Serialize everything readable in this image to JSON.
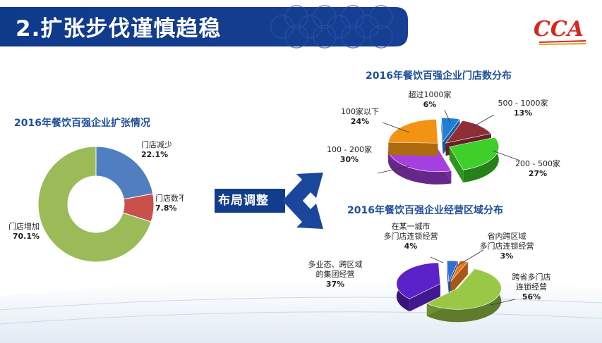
{
  "banner": {
    "title": "2.扩张步伐谨慎趋稳"
  },
  "logo": {
    "text": "CCA"
  },
  "arrow_label": "布局调整",
  "colors": {
    "banner": "#123c8c",
    "title_text": "#1f4e9a"
  },
  "chart_data": [
    {
      "type": "pie",
      "style": "donut",
      "title": "2016年餐饮百强企业扩张情况",
      "slices": [
        {
          "label": "门店减少",
          "value": 22.1,
          "value_label": "22.1%",
          "color": "#4f7fc0"
        },
        {
          "label": "门店数不变",
          "value": 7.8,
          "value_label": "7.8%",
          "color": "#c9504b"
        },
        {
          "label": "门店增加",
          "value": 70.1,
          "value_label": "70.1%",
          "color": "#9bbb59"
        }
      ]
    },
    {
      "type": "pie",
      "style": "3d-exploded",
      "title": "2016年餐饮百强企业门店数分布",
      "slices": [
        {
          "label": "超过1000家",
          "value": 6,
          "value_label": "6%",
          "color": "#1f7fd4"
        },
        {
          "label": "500 - 1000家",
          "value": 13,
          "value_label": "13%",
          "color": "#8e2e36"
        },
        {
          "label": "200 - 500家",
          "value": 27,
          "value_label": "27%",
          "color": "#3fcf2a"
        },
        {
          "label": "100 - 200家",
          "value": 30,
          "value_label": "30%",
          "color": "#a53fe0"
        },
        {
          "label": "100家以下",
          "value": 24,
          "value_label": "24%",
          "color": "#f39314"
        }
      ]
    },
    {
      "type": "pie",
      "style": "3d-exploded",
      "title": "2016年餐饮百强企业经营区域分布",
      "slices": [
        {
          "label": "在某一城市多门店连锁经营",
          "label_lines": [
            "在某一城市",
            "多门店连锁经营"
          ],
          "value": 4,
          "value_label": "4%",
          "color": "#2f6fd0"
        },
        {
          "label": "省内跨区域多门店连锁经营",
          "label_lines": [
            "省内跨区域",
            "多门店连锁经营"
          ],
          "value": 3,
          "value_label": "3%",
          "color": "#e8791e"
        },
        {
          "label": "跨省多门店连锁经营",
          "label_lines": [
            "跨省多门店",
            "连锁经营"
          ],
          "value": 56,
          "value_label": "56%",
          "color": "#98c846"
        },
        {
          "label": "多业态、跨区域的集团经营",
          "label_lines": [
            "多业态、跨区域",
            "的集团经营"
          ],
          "value": 37,
          "value_label": "37%",
          "color": "#5a22c8"
        }
      ]
    }
  ]
}
